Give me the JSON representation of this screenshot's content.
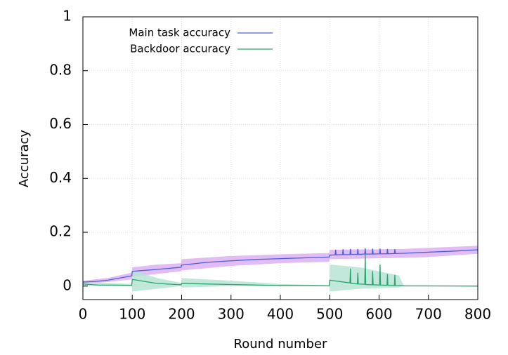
{
  "chart_data": {
    "type": "line",
    "xlabel": "Round number",
    "ylabel": "Accuracy",
    "xlim": [
      0,
      800
    ],
    "ylim": [
      -0.05,
      1
    ],
    "xticks": [
      0,
      100,
      200,
      300,
      400,
      500,
      600,
      700,
      800
    ],
    "yticks": [
      0,
      0.2,
      0.4,
      0.6,
      0.8,
      1
    ],
    "grid": true,
    "legend": "top-left",
    "series": [
      {
        "name": "Main task accuracy",
        "color": "#4c5fd8",
        "band_color": "#ddb0f2",
        "x": [
          0,
          25,
          50,
          75,
          99,
          100,
          150,
          199,
          200,
          250,
          300,
          350,
          400,
          450,
          499,
          500,
          511,
          512,
          513,
          526,
          527,
          528,
          541,
          542,
          543,
          556,
          557,
          558,
          571,
          572,
          573,
          586,
          587,
          588,
          601,
          602,
          603,
          616,
          617,
          618,
          631,
          632,
          633,
          650,
          700,
          750,
          800
        ],
        "values": [
          0.015,
          0.017,
          0.022,
          0.03,
          0.038,
          0.055,
          0.062,
          0.07,
          0.078,
          0.088,
          0.094,
          0.099,
          0.102,
          0.105,
          0.108,
          0.115,
          0.116,
          0.135,
          0.116,
          0.117,
          0.137,
          0.117,
          0.117,
          0.138,
          0.118,
          0.118,
          0.138,
          0.118,
          0.119,
          0.14,
          0.119,
          0.119,
          0.139,
          0.119,
          0.12,
          0.139,
          0.12,
          0.12,
          0.138,
          0.12,
          0.121,
          0.137,
          0.121,
          0.122,
          0.126,
          0.13,
          0.135
        ],
        "band": {
          "x": [
            0,
            50,
            99,
            100,
            150,
            199,
            200,
            300,
            400,
            499,
            500,
            650,
            700,
            800
          ],
          "lower": [
            0.01,
            0.015,
            0.025,
            0.035,
            0.045,
            0.055,
            0.058,
            0.075,
            0.085,
            0.09,
            0.1,
            0.105,
            0.108,
            0.12
          ],
          "upper": [
            0.02,
            0.03,
            0.05,
            0.07,
            0.08,
            0.085,
            0.1,
            0.112,
            0.118,
            0.123,
            0.135,
            0.138,
            0.142,
            0.15
          ]
        }
      },
      {
        "name": "Backdoor accuracy",
        "color": "#2aa56c",
        "band_color": "#b6e4d4",
        "x": [
          0,
          30,
          99,
          100,
          150,
          199,
          200,
          300,
          400,
          499,
          500,
          541,
          542,
          543,
          556,
          557,
          558,
          571,
          572,
          573,
          586,
          587,
          588,
          601,
          602,
          603,
          616,
          617,
          618,
          631,
          632,
          633,
          650,
          800
        ],
        "values": [
          0.008,
          0.004,
          0.003,
          0.025,
          0.01,
          0.005,
          0.01,
          0.006,
          0.002,
          0.001,
          0.022,
          0.012,
          0.065,
          0.01,
          0.008,
          0.05,
          0.008,
          0.007,
          0.12,
          0.006,
          0.005,
          0.055,
          0.005,
          0.004,
          0.08,
          0.004,
          0.003,
          0.045,
          0.003,
          0.002,
          0.042,
          0.002,
          0.001,
          0
        ],
        "band": {
          "x": [
            0,
            99,
            100,
            150,
            199,
            200,
            300,
            400,
            499,
            500,
            560,
            640,
            650,
            800
          ],
          "lower": [
            0.002,
            0,
            -0.02,
            -0.01,
            0,
            -0.005,
            0,
            0,
            0,
            -0.02,
            -0.01,
            -0.005,
            0,
            0
          ],
          "upper": [
            0.015,
            0.008,
            0.06,
            0.03,
            0.012,
            0.03,
            0.02,
            0.008,
            0.003,
            0.08,
            0.07,
            0.04,
            0.003,
            0.001
          ]
        }
      }
    ]
  }
}
